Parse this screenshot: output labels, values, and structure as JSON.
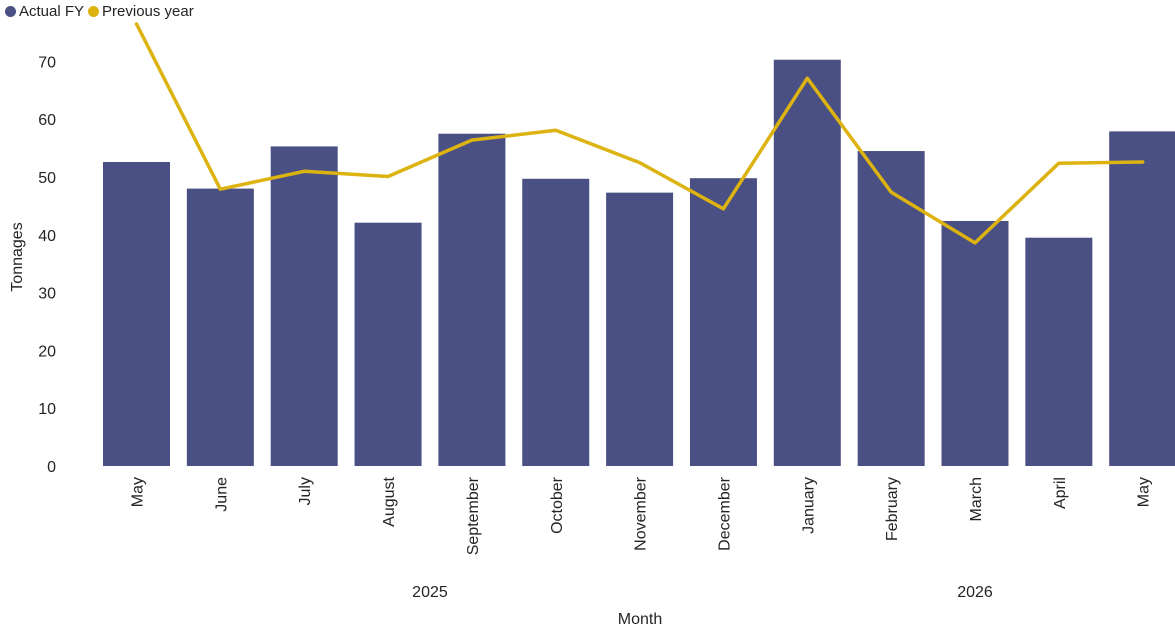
{
  "chart_data": {
    "type": "bar",
    "title": "",
    "xlabel": "Month",
    "ylabel": "Tonnages",
    "ylim": [
      0,
      77
    ],
    "yticks": [
      0,
      10,
      20,
      30,
      40,
      50,
      60,
      70
    ],
    "grid": false,
    "legend_position": "top-left",
    "categories": [
      "May",
      "June",
      "July",
      "August",
      "September",
      "October",
      "November",
      "December",
      "January",
      "February",
      "March",
      "April",
      "May"
    ],
    "year_groups": [
      {
        "label": "2025",
        "start": 0,
        "end": 7
      },
      {
        "label": "2026",
        "start": 8,
        "end": 12
      }
    ],
    "series": [
      {
        "name": "Actual FY",
        "kind": "bar",
        "color": "#4a5083",
        "values": [
          52.6,
          48.0,
          55.3,
          42.1,
          57.5,
          49.7,
          47.3,
          49.8,
          70.3,
          54.5,
          42.4,
          39.5,
          57.9
        ]
      },
      {
        "name": "Previous year",
        "kind": "line",
        "color": "#dcb310",
        "values": [
          76.5,
          47.9,
          51.0,
          50.1,
          56.4,
          58.1,
          52.5,
          44.5,
          67.1,
          47.4,
          38.6,
          52.4,
          52.6
        ]
      }
    ]
  }
}
